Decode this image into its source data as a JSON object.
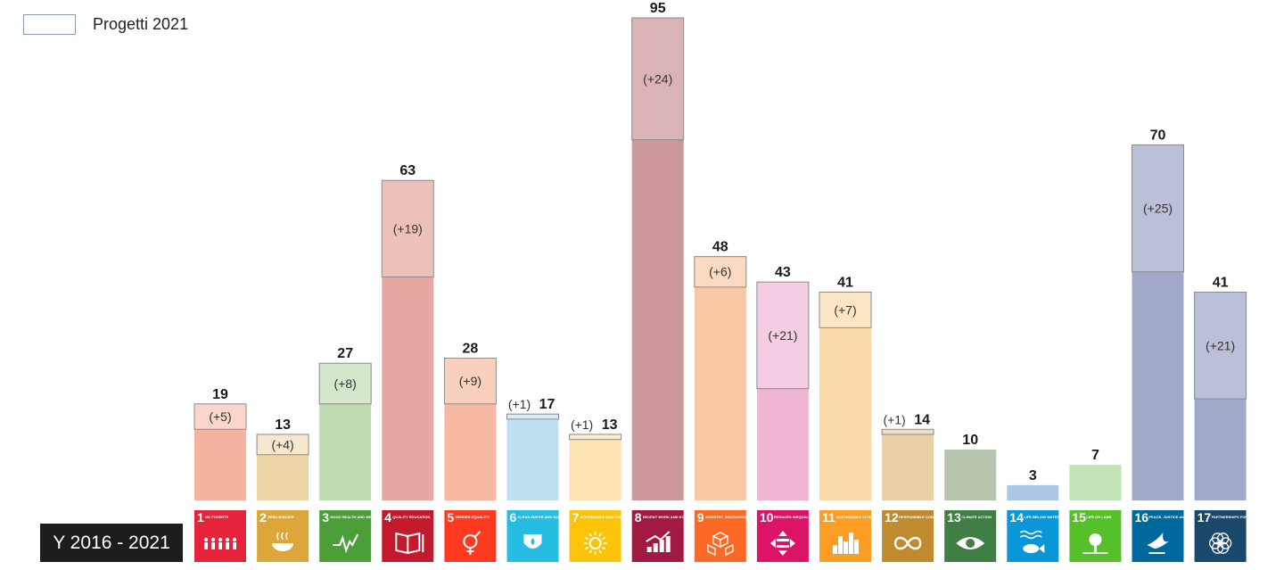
{
  "legend": {
    "label": "Progetti 2021"
  },
  "period": {
    "label": "Y 2016 - 2021"
  },
  "chart_data": {
    "type": "bar",
    "stacked": true,
    "series_labels": {
      "new": "Progetti 2021"
    },
    "grid": false,
    "legend_position": "top-left",
    "ylim": [
      0,
      95
    ],
    "categories": [
      "1",
      "2",
      "3",
      "4",
      "5",
      "6",
      "7",
      "8",
      "9",
      "10",
      "11",
      "12",
      "13",
      "14",
      "15",
      "16",
      "17"
    ],
    "goals": [
      {
        "num": "1",
        "caption": "NO POVERTY",
        "total": 19,
        "increment": 5,
        "increment_label": "(+5)",
        "label_inline": false,
        "base_color": "#f4b4a0",
        "inc_color": "#f9d6cc",
        "icon_color": "#e5243b",
        "icon": "people-icon"
      },
      {
        "num": "2",
        "caption": "ZERO HUNGER",
        "total": 13,
        "increment": 4,
        "increment_label": "(+4)",
        "label_inline": false,
        "base_color": "#ecd5a6",
        "inc_color": "#f5e8cf",
        "icon_color": "#dda63a",
        "icon": "bowl-icon"
      },
      {
        "num": "3",
        "caption": "GOOD HEALTH AND WELL-BEING",
        "total": 27,
        "increment": 8,
        "increment_label": "(+8)",
        "label_inline": false,
        "base_color": "#c0dab2",
        "inc_color": "#d4e7cb",
        "icon_color": "#4c9f38",
        "icon": "heartbeat-icon"
      },
      {
        "num": "4",
        "caption": "QUALITY EDUCATION",
        "total": 63,
        "increment": 19,
        "increment_label": "(+19)",
        "label_inline": false,
        "base_color": "#e6a8a0",
        "inc_color": "#eec0ba",
        "icon_color": "#c5192d",
        "icon": "book-icon"
      },
      {
        "num": "5",
        "caption": "GENDER EQUALITY",
        "total": 28,
        "increment": 9,
        "increment_label": "(+9)",
        "label_inline": false,
        "base_color": "#f6b8a0",
        "inc_color": "#f9cfbe",
        "icon_color": "#ff3a21",
        "icon": "gender-icon"
      },
      {
        "num": "6",
        "caption": "CLEAN WATER AND SANITATION",
        "total": 17,
        "increment": 1,
        "increment_label": "(+1)",
        "label_inline": true,
        "base_color": "#bfe0f0",
        "inc_color": "#d8ecf6",
        "icon_color": "#26bde2",
        "icon": "water-drop-icon"
      },
      {
        "num": "7",
        "caption": "AFFORDABLE AND CLEAN ENERGY",
        "total": 13,
        "increment": 1,
        "increment_label": "(+1)",
        "label_inline": true,
        "base_color": "#fde3b0",
        "inc_color": "#fdecc8",
        "icon_color": "#fcc30b",
        "icon": "sun-icon"
      },
      {
        "num": "8",
        "caption": "DECENT WORK AND ECONOMIC GROWTH",
        "total": 95,
        "increment": 24,
        "increment_label": "(+24)",
        "label_inline": false,
        "base_color": "#cc989c",
        "inc_color": "#dab3b6",
        "icon_color": "#a21942",
        "icon": "growth-chart-icon"
      },
      {
        "num": "9",
        "caption": "INDUSTRY, INNOVATION AND INFRASTRUCTURE",
        "total": 48,
        "increment": 6,
        "increment_label": "(+6)",
        "label_inline": false,
        "base_color": "#f8c7a4",
        "inc_color": "#fbdac2",
        "icon_color": "#fd6925",
        "icon": "cubes-icon"
      },
      {
        "num": "10",
        "caption": "REDUCED INEQUALITIES",
        "total": 43,
        "increment": 21,
        "increment_label": "(+21)",
        "label_inline": false,
        "base_color": "#eeb6d2",
        "inc_color": "#f5cde2",
        "icon_color": "#dd1367",
        "icon": "equality-icon"
      },
      {
        "num": "11",
        "caption": "SUSTAINABLE CITIES AND COMMUNITIES",
        "total": 41,
        "increment": 7,
        "increment_label": "(+7)",
        "label_inline": false,
        "base_color": "#f9d9a8",
        "inc_color": "#fbe5c4",
        "icon_color": "#fd9d24",
        "icon": "city-icon"
      },
      {
        "num": "12",
        "caption": "RESPONSIBLE CONSUMPTION AND PRODUCTION",
        "total": 14,
        "increment": 1,
        "increment_label": "(+1)",
        "label_inline": true,
        "base_color": "#e8d0a8",
        "inc_color": "#f0dcc0",
        "icon_color": "#bf8b2e",
        "icon": "infinity-icon"
      },
      {
        "num": "13",
        "caption": "CLIMATE ACTION",
        "total": 10,
        "increment": 0,
        "increment_label": "",
        "label_inline": false,
        "base_color": "#b7c5ae",
        "inc_color": "#cfd9c8",
        "icon_color": "#3f7e44",
        "icon": "eye-icon"
      },
      {
        "num": "14",
        "caption": "LIFE BELOW WATER",
        "total": 3,
        "increment": 0,
        "increment_label": "",
        "label_inline": false,
        "base_color": "#aac8e6",
        "inc_color": "#c8dcf0",
        "icon_color": "#0a97d9",
        "icon": "fish-icon"
      },
      {
        "num": "15",
        "caption": "LIFE ON LAND",
        "total": 7,
        "increment": 0,
        "increment_label": "",
        "label_inline": false,
        "base_color": "#c2e2b8",
        "inc_color": "#d8eed0",
        "icon_color": "#56c02b",
        "icon": "tree-icon"
      },
      {
        "num": "16",
        "caption": "PEACE, JUSTICE AND STRONG INSTITUTIONS",
        "total": 70,
        "increment": 25,
        "increment_label": "(+25)",
        "label_inline": false,
        "base_color": "#a2a9c8",
        "inc_color": "#bbbfd8",
        "icon_color": "#00689d",
        "icon": "dove-icon"
      },
      {
        "num": "17",
        "caption": "PARTNERSHIPS FOR THE GOALS",
        "total": 41,
        "increment": 21,
        "increment_label": "(+21)",
        "label_inline": false,
        "base_color": "#a2a9c8",
        "inc_color": "#bbbfd8",
        "icon_color": "#19486a",
        "icon": "flower-icon"
      }
    ]
  }
}
